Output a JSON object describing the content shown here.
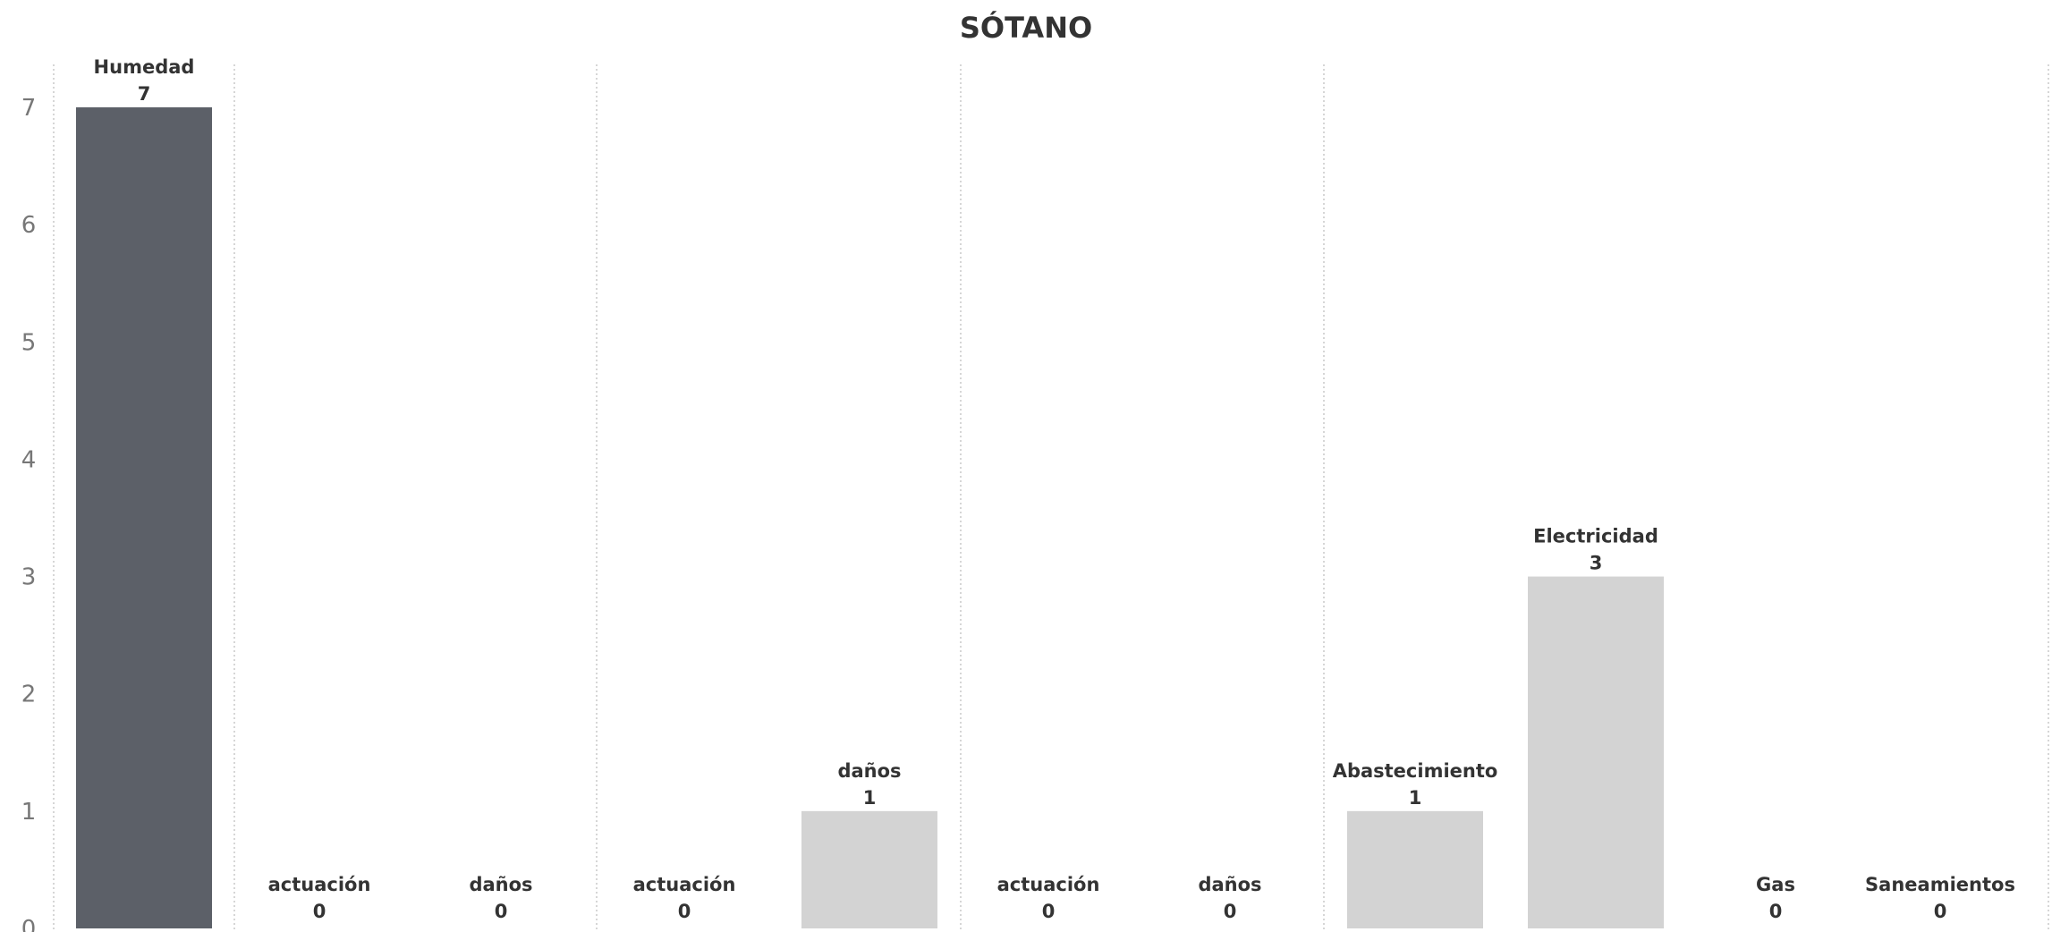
{
  "chart_data": {
    "type": "bar",
    "title": "SÓTANO",
    "ylim": [
      0,
      7
    ],
    "yticks": [
      0,
      1,
      2,
      3,
      4,
      5,
      6,
      7
    ],
    "grid": false,
    "colors": {
      "highlight": "#5c6068",
      "default": "#d3d3d3",
      "divider": "#c8c8c8"
    },
    "bars": [
      {
        "label": "Humedad",
        "value": 7,
        "highlight": true
      },
      {
        "label": "actuación",
        "value": 0,
        "highlight": false
      },
      {
        "label": "daños",
        "value": 0,
        "highlight": false
      },
      {
        "label": "actuación",
        "value": 0,
        "highlight": false
      },
      {
        "label": "daños",
        "value": 1,
        "highlight": false
      },
      {
        "label": "actuación",
        "value": 0,
        "highlight": false
      },
      {
        "label": "daños",
        "value": 0,
        "highlight": false
      },
      {
        "label": "Abastecimiento",
        "value": 1,
        "highlight": false
      },
      {
        "label": "Electricidad",
        "value": 3,
        "highlight": false
      },
      {
        "label": "Gas",
        "value": 0,
        "highlight": false
      },
      {
        "label": "Saneamientos",
        "value": 0,
        "highlight": false
      }
    ]
  }
}
